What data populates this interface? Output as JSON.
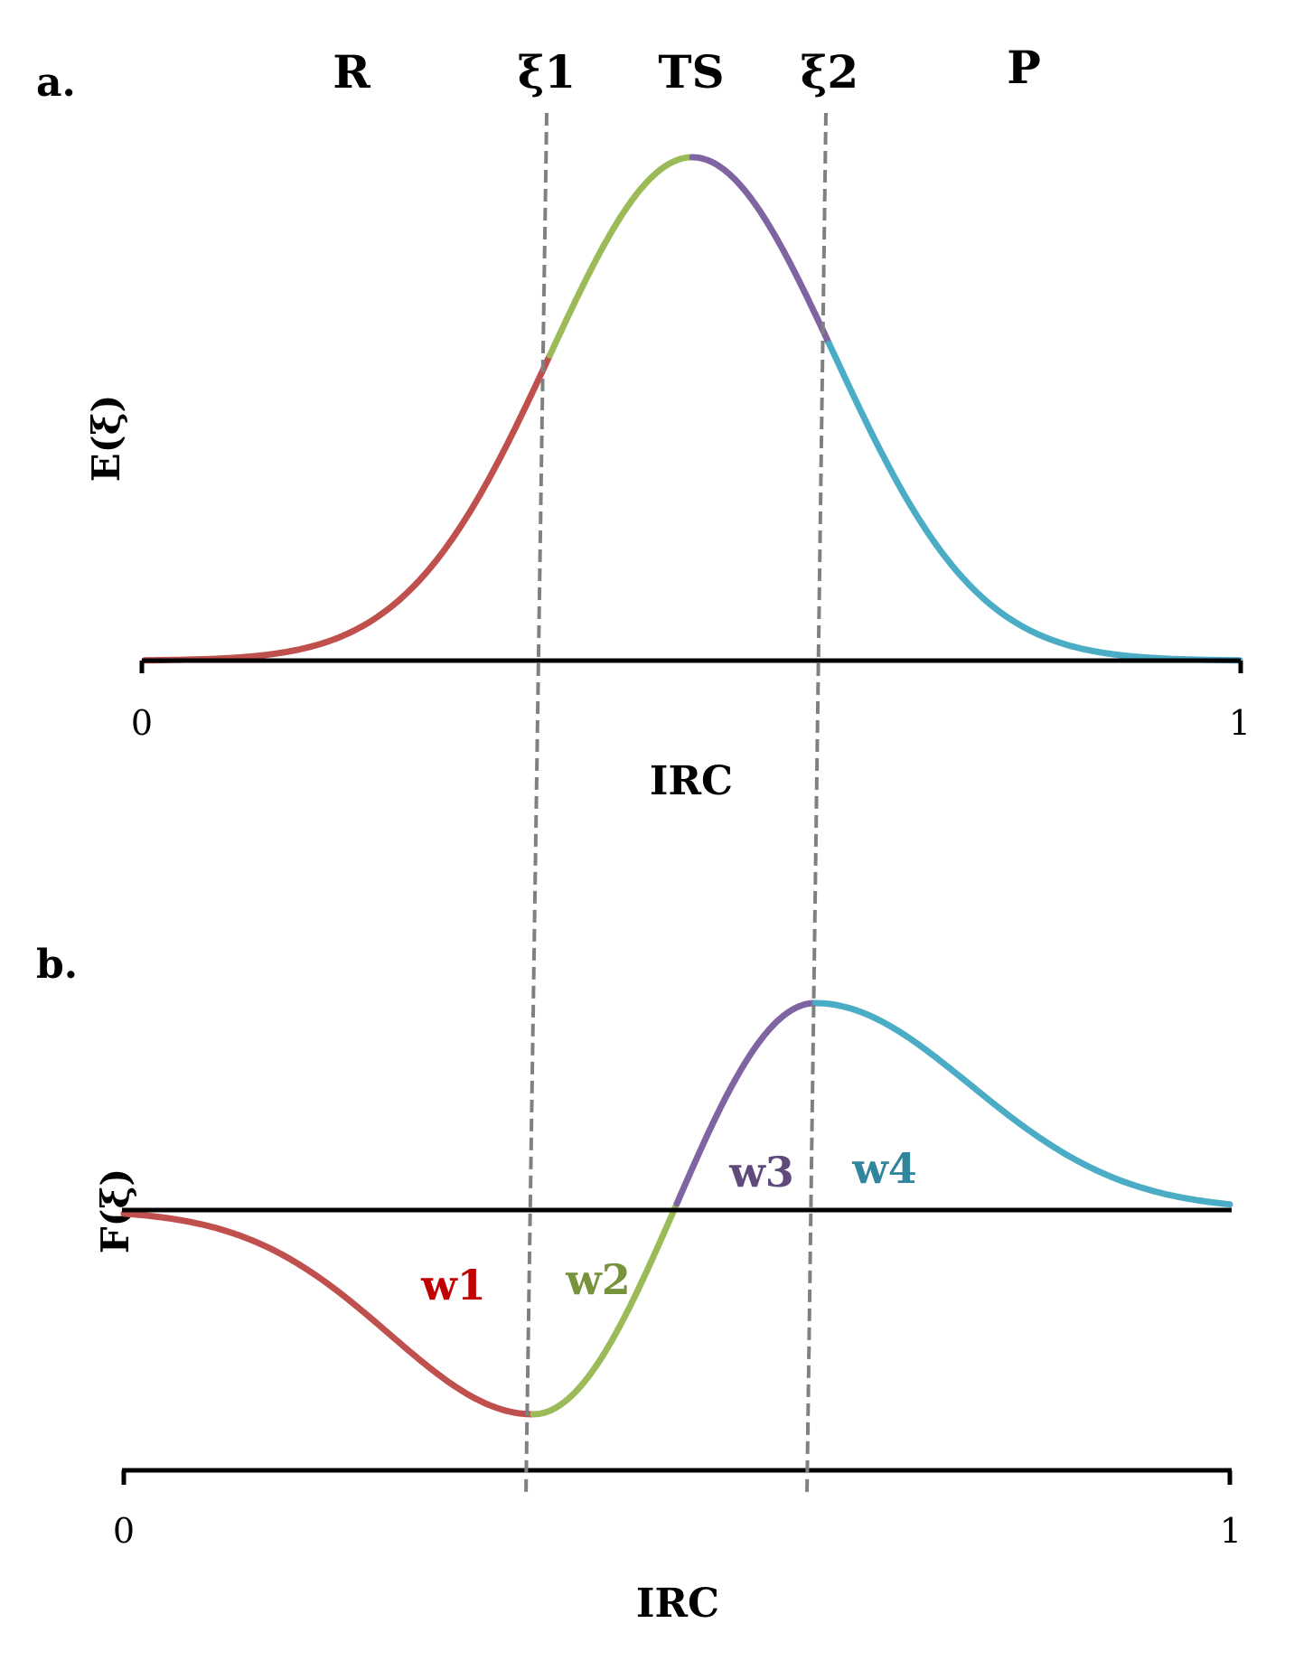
{
  "chart_data": [
    {
      "type": "line",
      "panel_label": "a.",
      "ylabel": "E(ξ)",
      "xlabel": "IRC",
      "x_ticks": [
        "0",
        "1"
      ],
      "xlim": [
        0,
        1
      ],
      "top_labels": [
        "R",
        "ξ1",
        "TS",
        "ξ2",
        "P"
      ],
      "curve": "gaussian",
      "peak_x": 0.5,
      "dividers_x": [
        0.37,
        0.625
      ],
      "segments": [
        {
          "name": "R",
          "color": "#c0504d",
          "x_range": [
            0,
            0.37
          ]
        },
        {
          "name": "TS-left",
          "color": "#9bbb59",
          "x_range": [
            0.37,
            0.5
          ]
        },
        {
          "name": "TS-right",
          "color": "#8064a2",
          "x_range": [
            0.5,
            0.625
          ]
        },
        {
          "name": "P",
          "color": "#4bacc6",
          "x_range": [
            0.625,
            1
          ]
        }
      ]
    },
    {
      "type": "line",
      "panel_label": "b.",
      "ylabel": "F(ξ)",
      "xlabel": "IRC",
      "x_ticks": [
        "0",
        "1"
      ],
      "xlim": [
        0,
        1
      ],
      "curve": "gaussian-derivative",
      "min_x": 0.37,
      "max_x": 0.625,
      "segments": [
        {
          "name": "w1",
          "label": "w1",
          "color": "#c0504d",
          "label_color": "#c00000",
          "x_range": [
            0,
            0.37
          ]
        },
        {
          "name": "w2",
          "label": "w2",
          "color": "#9bbb59",
          "label_color": "#77933c",
          "x_range": [
            0.37,
            0.5
          ]
        },
        {
          "name": "w3",
          "label": "w3",
          "color": "#8064a2",
          "label_color": "#604a7b",
          "x_range": [
            0.5,
            0.625
          ]
        },
        {
          "name": "w4",
          "label": "w4",
          "color": "#4bacc6",
          "label_color": "#31859c",
          "x_range": [
            0.625,
            1
          ]
        }
      ]
    }
  ],
  "colors": {
    "axis": "#000000",
    "divider": "#808080"
  }
}
